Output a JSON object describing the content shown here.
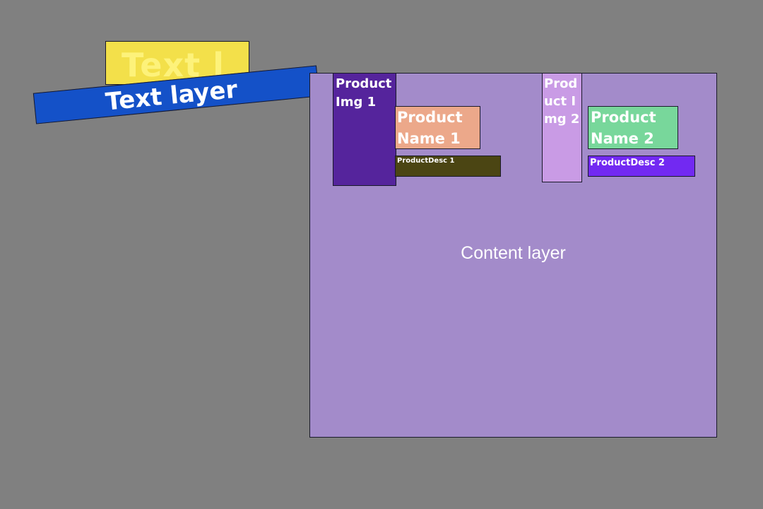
{
  "layers": {
    "text_l": {
      "label": "Text l",
      "color": "#f3e04a"
    },
    "text_layer": {
      "label": "Text layer",
      "color": "#1451c8"
    },
    "content_layer": {
      "label": "Content layer",
      "color": "#a38bca"
    }
  },
  "products": [
    {
      "img_label": "ProductImg 1",
      "img_color": "#55249c",
      "name_label": "Product Name 1",
      "name_color": "#eca88a",
      "desc_label": "ProductDesc 1",
      "desc_color": "#4b4513"
    },
    {
      "img_label": "Product Img 2",
      "img_color": "#c99be5",
      "name_label": "Product Name 2",
      "name_color": "#78d79b",
      "desc_label": "ProductDesc 2",
      "desc_color": "#7229f2"
    }
  ]
}
